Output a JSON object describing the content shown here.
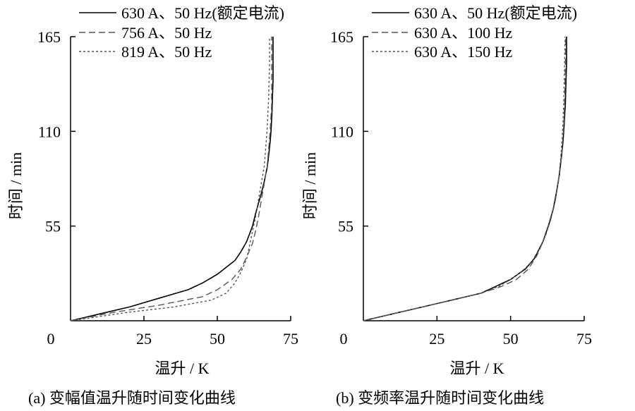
{
  "chart_data": [
    {
      "type": "line",
      "caption": "(a) 变幅值温升随时间变化曲线",
      "xlabel": "温升 / K",
      "ylabel": "时间 / min",
      "xlim": [
        0,
        75
      ],
      "ylim": [
        0,
        165
      ],
      "xticks": [
        "25",
        "50",
        "75"
      ],
      "yticks": [
        "55",
        "110",
        "165"
      ],
      "origin_label": "0",
      "legend_position": "top-left",
      "series": [
        {
          "name": "630 A、50 Hz(额定电流)",
          "style": "solid",
          "color": "#000000",
          "x": [
            0,
            10,
            20,
            30,
            40,
            45,
            50,
            53,
            56,
            58,
            60,
            62,
            63,
            64,
            65,
            66,
            67,
            67.5,
            68,
            68.3,
            68.6,
            68.8,
            69,
            69,
            69
          ],
          "y": [
            0,
            4,
            8,
            13,
            18,
            22,
            27,
            31,
            35,
            40,
            46,
            55,
            62,
            68,
            74,
            81,
            89,
            96,
            104,
            110,
            120,
            130,
            140,
            155,
            165
          ]
        },
        {
          "name": "756 A、50 Hz",
          "style": "dashed",
          "color": "#555555",
          "x": [
            0,
            15,
            30,
            45,
            50,
            55,
            58,
            60,
            62,
            63,
            64,
            65,
            66,
            67,
            67.5,
            68,
            68.5,
            68.5,
            68.5
          ],
          "y": [
            0,
            5,
            9,
            14,
            18,
            24,
            30,
            37,
            45,
            52,
            60,
            70,
            80,
            90,
            100,
            110,
            125,
            145,
            165
          ]
        },
        {
          "name": "819 A、50 Hz",
          "style": "dotted",
          "color": "#555555",
          "x": [
            0,
            20,
            35,
            48,
            53,
            56,
            58,
            60,
            61,
            62,
            63,
            64,
            65,
            66,
            66.5,
            67,
            67.5,
            67.8,
            67.8
          ],
          "y": [
            0,
            5,
            8,
            12,
            16,
            22,
            28,
            36,
            44,
            52,
            60,
            70,
            80,
            90,
            100,
            112,
            130,
            150,
            165
          ]
        }
      ]
    },
    {
      "type": "line",
      "caption": "(b) 变频率温升随时间变化曲线",
      "xlabel": "温升 / K",
      "ylabel": "时间 / min",
      "xlim": [
        0,
        75
      ],
      "ylim": [
        0,
        165
      ],
      "xticks": [
        "25",
        "50",
        "75"
      ],
      "yticks": [
        "55",
        "110",
        "165"
      ],
      "origin_label": "0",
      "legend_position": "top-left",
      "series": [
        {
          "name": "630 A、50 Hz(额定电流)",
          "style": "solid",
          "color": "#000000",
          "x": [
            0,
            10,
            20,
            30,
            40,
            45,
            50,
            55,
            58,
            61,
            63,
            64.5,
            65.5,
            66.5,
            67.2,
            67.8,
            68.2,
            68.6,
            68.8,
            69,
            69
          ],
          "y": [
            0,
            4,
            8,
            12,
            16,
            20,
            24,
            30,
            36,
            46,
            56,
            65,
            74,
            84,
            94,
            104,
            114,
            126,
            138,
            150,
            165
          ]
        },
        {
          "name": "630 A、100 Hz",
          "style": "dashed",
          "color": "#555555",
          "x": [
            0,
            10,
            20,
            30,
            40,
            47,
            52,
            56,
            59,
            61.5,
            63.5,
            65,
            66,
            67,
            67.6,
            68.1,
            68.4,
            68.6,
            68.7
          ],
          "y": [
            0,
            4,
            8,
            12,
            16,
            20,
            24,
            30,
            38,
            48,
            58,
            68,
            78,
            90,
            102,
            115,
            130,
            148,
            165
          ]
        },
        {
          "name": "630 A、150 Hz",
          "style": "dotted",
          "color": "#555555",
          "x": [
            0,
            10,
            20,
            30,
            40,
            46,
            50,
            54,
            57,
            60,
            62,
            63.8,
            65.2,
            66.3,
            67,
            67.6,
            68,
            68.3,
            68.5
          ],
          "y": [
            0,
            4,
            8,
            12,
            16,
            20,
            24,
            29,
            34,
            42,
            50,
            60,
            70,
            82,
            94,
            108,
            124,
            144,
            165
          ]
        }
      ]
    }
  ]
}
